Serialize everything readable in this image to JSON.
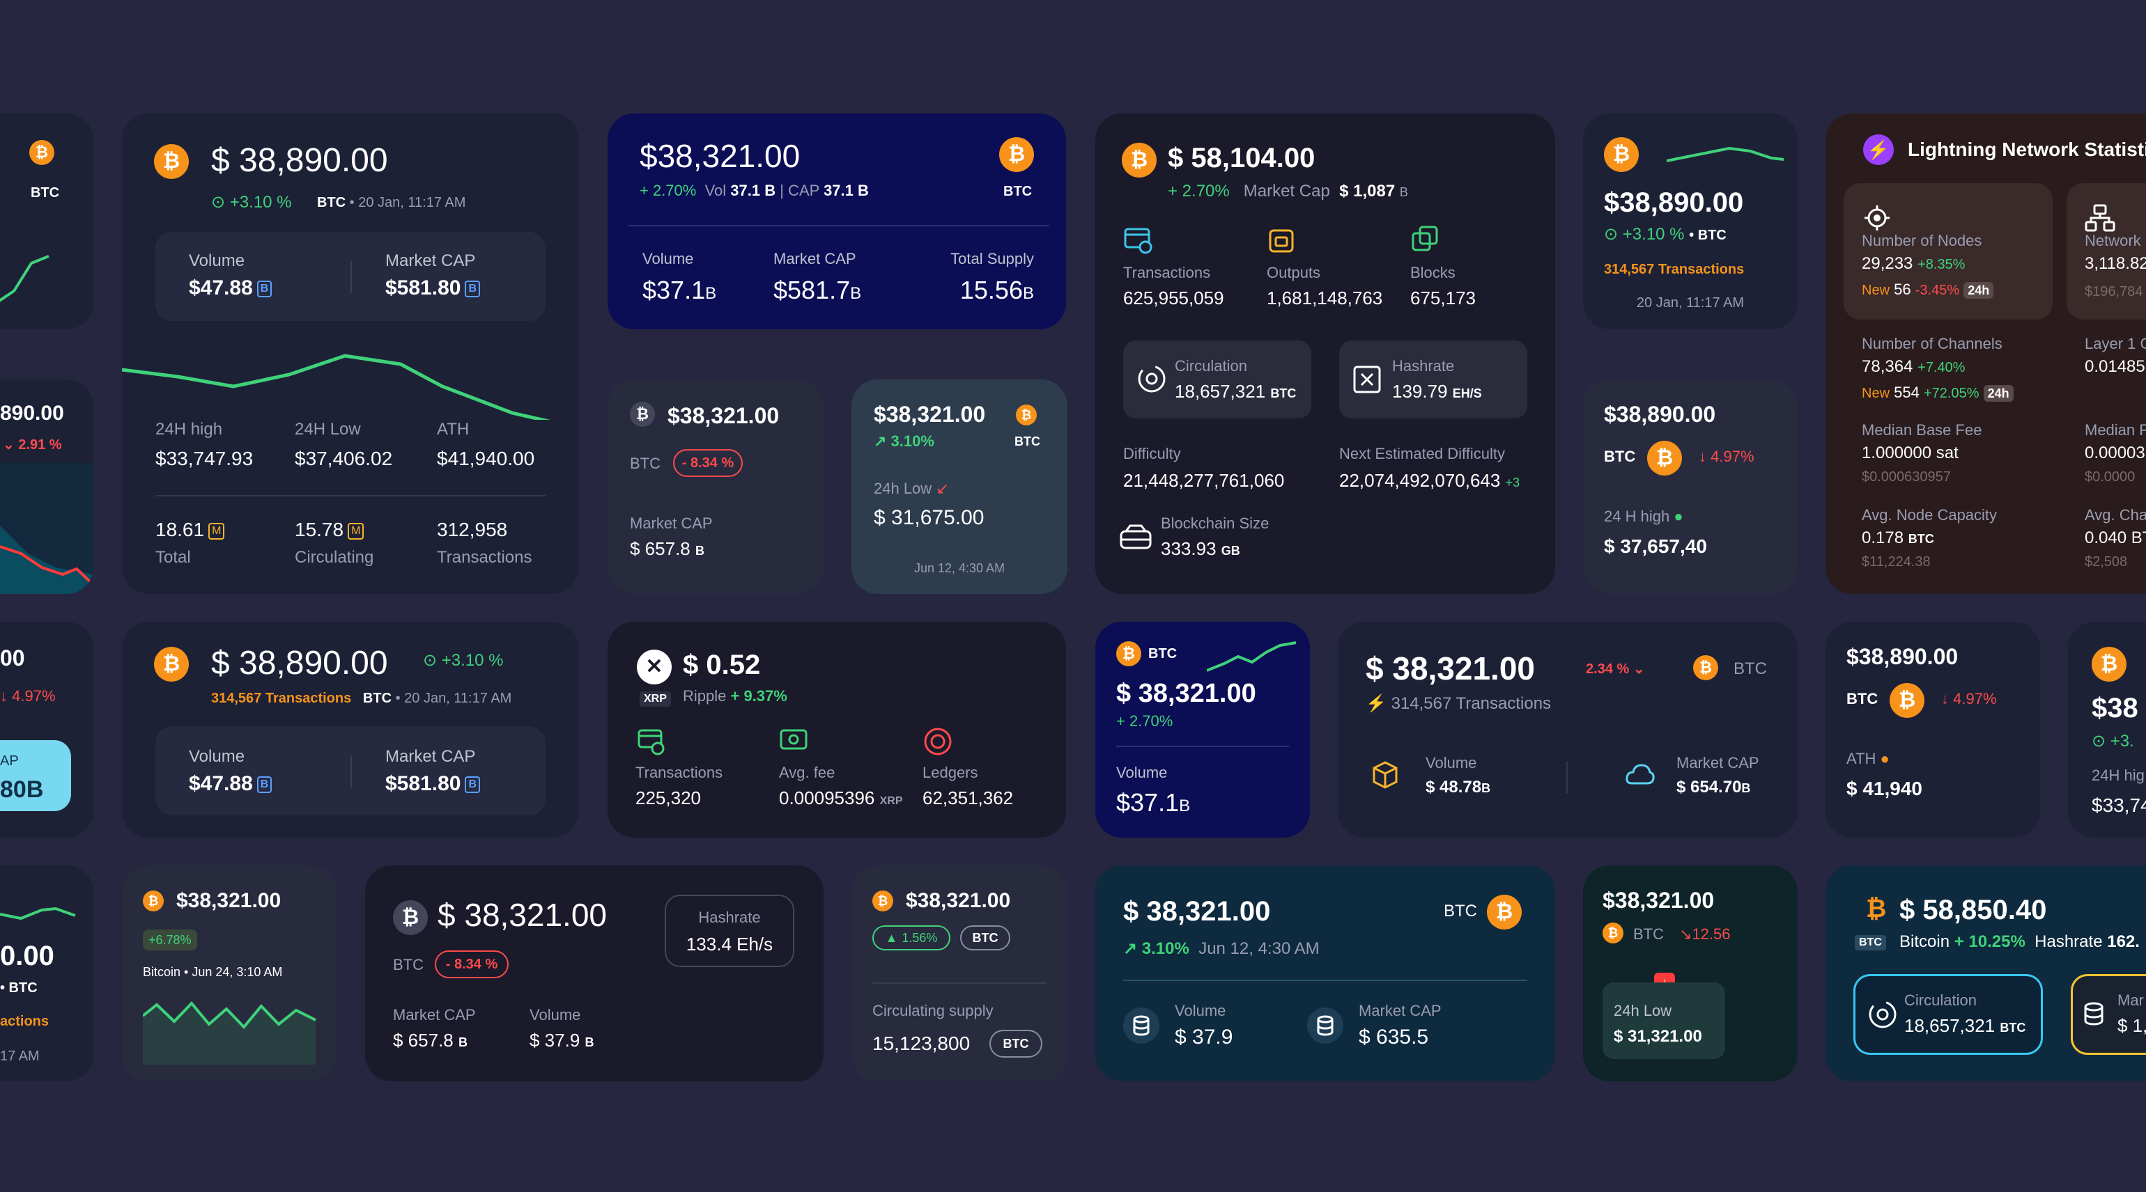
{
  "colors": {
    "background": "#262641",
    "up": "#3fd27a",
    "down": "#ff4b4b",
    "btc": "#f7931a",
    "navy": "#0b0d55",
    "teal": "#0e2a3e"
  },
  "c1": {
    "ticker": "BTC"
  },
  "c2": {
    "price": "$ 38,890.00",
    "change": "+3.10 %",
    "ticker": "BTC",
    "date": "• 20 Jan, 11:17 AM",
    "vol_label": "Volume",
    "vol_value": "$47.88",
    "vol_unit": "B",
    "cap_label": "Market CAP",
    "cap_value": "$581.80",
    "cap_unit": "B",
    "high_label": "24H high",
    "high_value": "$33,747.93",
    "low_label": "24H Low",
    "low_value": "$37,406.02",
    "ath_label": "ATH",
    "ath_value": "$41,940.00",
    "total_value": "18.61",
    "total_unit": "M",
    "total_label": "Total",
    "circ_value": "15.78",
    "circ_unit": "M",
    "circ_label": "Circulating",
    "tx_value": "312,958",
    "tx_label": "Transactions"
  },
  "c3": {
    "price": "$38,321.00",
    "change": "+ 2.70%",
    "vol_label": "Vol",
    "vol_value": "37.1 B",
    "cap_label": "CAP",
    "cap_value": "37.1 B",
    "ticker": "BTC",
    "volume_label": "Volume",
    "volume_value": "$37.1",
    "volume_unit": "B",
    "mcap_label": "Market CAP",
    "mcap_value": "$581.7",
    "mcap_unit": "B",
    "supply_label": "Total Supply",
    "supply_value": "15.56",
    "supply_unit": "B"
  },
  "c4": {
    "price": "$ 58,104.00",
    "change": "+ 2.70%",
    "cap_label": "Market Cap",
    "cap_value": "$ 1,087",
    "cap_unit": "B",
    "tx_label": "Transactions",
    "tx_value": "625,955,059",
    "out_label": "Outputs",
    "out_value": "1,681,148,763",
    "blk_label": "Blocks",
    "blk_value": "675,173",
    "circ_label": "Circulation",
    "circ_value": "18,657,321",
    "circ_unit": "BTC",
    "hash_label": "Hashrate",
    "hash_value": "139.79",
    "hash_unit": "EH/S",
    "diff_label": "Difficulty",
    "diff_value": "21,448,277,761,060",
    "next_label": "Next Estimated Difficulty",
    "next_value": "22,074,492,070,643",
    "next_change": "+3",
    "size_label": "Blockchain Size",
    "size_value": "333.93",
    "size_unit": "GB"
  },
  "c5": {
    "price": "$38,890.00",
    "change": "+3.10 %",
    "ticker": "• BTC",
    "tx": "314,567 Transactions",
    "date": "20 Jan, 11:17 AM"
  },
  "c6": {
    "title": "Lightning Network Statistic",
    "nodes_label": "Number of Nodes",
    "nodes_value": "29,233",
    "nodes_change": "+8.35%",
    "nodes_new_label": "New",
    "nodes_new": "56",
    "nodes_new_change": "-3.45%",
    "nodes_period": "24h",
    "net_label": "Network",
    "net_value": "3,118.82",
    "net_sub": "$196,784",
    "ch_label": "Number of Channels",
    "ch_value": "78,364",
    "ch_change": "+7.40%",
    "ch_new_label": "New",
    "ch_new": "554",
    "ch_new_change": "+72.05%",
    "ch_period": "24h",
    "layer_label": "Layer 1 C",
    "layer_value": "0.01485",
    "base_label": "Median Base Fee",
    "base_value": "1.000000 sat",
    "base_sub": "$0.000630957",
    "med_label": "Median F",
    "med_value": "0.00003",
    "med_sub": "$0.0000",
    "cap_label": "Avg. Node Capacity",
    "cap_value": "0.178",
    "cap_unit": "BTC",
    "cap_sub": "$11,224.38",
    "avgch_label": "Avg. Cha",
    "avgch_value": "0.040 BT",
    "avgch_sub": "$2,508"
  },
  "c7": {
    "price": "890.00",
    "change": "2.91 %"
  },
  "c8": {
    "price": "$38,321.00",
    "ticker": "BTC",
    "change": "- 8.34 %",
    "cap_label": "Market CAP",
    "cap_value": "$ 657.8",
    "cap_unit": "B"
  },
  "c9": {
    "price": "$38,321.00",
    "change": "3.10%",
    "ticker": "BTC",
    "low_label": "24h Low",
    "low_value": "$ 31,675.00",
    "date": "Jun 12, 4:30 AM"
  },
  "c10": {
    "price": "$38,890.00",
    "ticker": "BTC",
    "change": "4.97%",
    "high_label": "24 H high",
    "high_value": "$ 37,657,40"
  },
  "c11": {
    "price": "00",
    "change": "4.97%",
    "cap_label": "AP",
    "cap_value": "80B"
  },
  "c12": {
    "price": "$ 38,890.00",
    "change": "+3.10 %",
    "tx": "314,567 Transactions",
    "ticker": "BTC",
    "date": "• 20 Jan, 11:17 AM",
    "vol_label": "Volume",
    "vol_value": "$47.88",
    "vol_unit": "B",
    "cap_label": "Market CAP",
    "cap_value": "$581.80",
    "cap_unit": "B"
  },
  "c13": {
    "price": "$ 0.52",
    "ticker": "XRP",
    "name": "Ripple",
    "change": "+ 9.37%",
    "tx_label": "Transactions",
    "tx_value": "225,320",
    "fee_label": "Avg. fee",
    "fee_value": "0.00095396",
    "fee_unit": "XRP",
    "led_label": "Ledgers",
    "led_value": "62,351,362"
  },
  "c14": {
    "ticker": "BTC",
    "price": "$ 38,321.00",
    "change": "+ 2.70%",
    "vol_label": "Volume",
    "vol_value": "$37.1",
    "vol_unit": "B"
  },
  "c15": {
    "price": "$ 38,321.00",
    "change": "2.34 %",
    "ticker": "BTC",
    "tx": "314,567 Transactions",
    "vol_label": "Volume",
    "vol_value": "$ 48.78",
    "vol_unit": "B",
    "cap_label": "Market CAP",
    "cap_value": "$ 654.70",
    "cap_unit": "B"
  },
  "c16": {
    "price": "$38,890.00",
    "ticker": "BTC",
    "change": "4.97%",
    "ath_label": "ATH",
    "ath_value": "$ 41,940"
  },
  "c17": {
    "price": "$38",
    "change": "+3.",
    "high_label": "24H hig",
    "high_value": "$33,74"
  },
  "c18": {
    "price": "0.00",
    "ticker": "• BTC",
    "tx": "actions",
    "time": "17 AM"
  },
  "c19": {
    "price": "$38,321.00",
    "change": "+6.78%",
    "date": "Bitcoin • Jun 24, 3:10 AM"
  },
  "c20": {
    "price": "$ 38,321.00",
    "ticker": "BTC",
    "change": "- 8.34 %",
    "hash_label": "Hashrate",
    "hash_value": "133.4 Eh/s",
    "cap_label": "Market CAP",
    "cap_value": "$ 657.8",
    "cap_unit": "B",
    "vol_label": "Volume",
    "vol_value": "$ 37.9",
    "vol_unit": "B"
  },
  "c21": {
    "price": "$38,321.00",
    "change": "1.56%",
    "ticker": "BTC",
    "supply_label": "Circulating supply",
    "supply_value": "15,123,800",
    "supply_unit": "BTC"
  },
  "c22": {
    "price": "$ 38,321.00",
    "ticker": "BTC",
    "change": "3.10%",
    "date": "Jun 12, 4:30 AM",
    "vol_label": "Volume",
    "vol_value": "$ 37.9",
    "cap_label": "Market CAP",
    "cap_value": "$ 635.5"
  },
  "c23": {
    "price": "$38,321.00",
    "ticker": "BTC",
    "change": "12.56",
    "low_label": "24h Low",
    "low_value": "$ 31,321.00"
  },
  "c24": {
    "price": "$ 58,850.40",
    "ticker": "BTC",
    "name": "Bitcoin",
    "change": "+ 10.25%",
    "hash_label": "Hashrate",
    "hash_value": "162.",
    "circ_label": "Circulation",
    "circ_value": "18,657,321",
    "circ_unit": "BTC",
    "mar_label": "Mar",
    "mar_value": "$ 1,"
  }
}
